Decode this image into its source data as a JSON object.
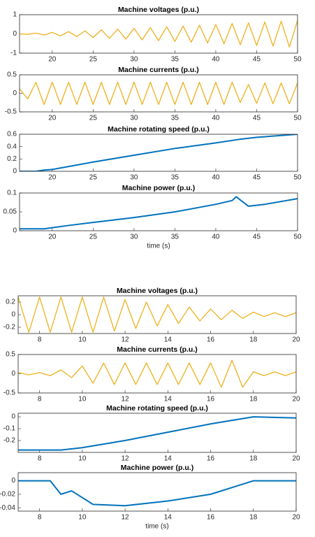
{
  "chart_data": [
    {
      "type": "line",
      "title": "Machine voltages (p.u.)",
      "xlim": [
        16,
        50
      ],
      "xticks": [
        20,
        25,
        30,
        35,
        40,
        45,
        50
      ],
      "ylim": [
        -1,
        1
      ],
      "yticks": [
        -1,
        0,
        1
      ],
      "x": [
        16,
        17,
        18,
        19,
        20,
        21,
        22,
        23,
        24,
        25,
        26,
        27,
        28,
        29,
        30,
        31,
        32,
        33,
        34,
        35,
        36,
        37,
        38,
        39,
        40,
        41,
        42,
        43,
        44,
        45,
        46,
        47,
        48,
        49,
        50
      ],
      "series": [
        {
          "color": "#EDB120",
          "values": [
            0,
            -0.02,
            0.04,
            -0.06,
            0.08,
            -0.1,
            0.12,
            -0.14,
            0.16,
            -0.19,
            0.21,
            -0.23,
            0.25,
            -0.27,
            0.29,
            -0.31,
            0.33,
            -0.35,
            0.37,
            -0.39,
            0.41,
            -0.43,
            0.45,
            -0.47,
            0.49,
            -0.51,
            0.54,
            -0.56,
            0.58,
            -0.6,
            0.62,
            -0.64,
            0.66,
            -0.68,
            0.7
          ]
        }
      ]
    },
    {
      "type": "line",
      "title": "Machine currents (p.u.)",
      "xlim": [
        16,
        50
      ],
      "xticks": [
        20,
        25,
        30,
        35,
        40,
        45,
        50
      ],
      "ylim": [
        -0.5,
        0.5
      ],
      "yticks": [
        -0.5,
        0,
        0.5
      ],
      "x": [
        16,
        17,
        18,
        19,
        20,
        21,
        22,
        23,
        24,
        25,
        26,
        27,
        28,
        29,
        30,
        31,
        32,
        33,
        34,
        35,
        36,
        37,
        38,
        39,
        40,
        41,
        42,
        43,
        44,
        45,
        46,
        47,
        48,
        49,
        50
      ],
      "series": [
        {
          "color": "#EDB120",
          "values": [
            0.12,
            -0.15,
            0.3,
            -0.3,
            0.3,
            -0.3,
            0.3,
            -0.3,
            0.3,
            -0.3,
            0.3,
            -0.3,
            0.3,
            -0.3,
            0.3,
            -0.3,
            0.3,
            -0.3,
            0.3,
            -0.3,
            0.3,
            -0.3,
            0.3,
            -0.3,
            0.3,
            -0.3,
            0.3,
            -0.25,
            0.24,
            -0.27,
            0.28,
            -0.28,
            0.28,
            -0.28,
            0.28
          ]
        }
      ]
    },
    {
      "type": "line",
      "title": "Machine rotating speed (p.u.)",
      "xlim": [
        16,
        50
      ],
      "xticks": [
        20,
        25,
        30,
        35,
        40,
        45,
        50
      ],
      "ylim": [
        0,
        0.6
      ],
      "yticks": [
        0,
        0.2,
        0.4,
        0.6
      ],
      "x": [
        16,
        18,
        19,
        20,
        25,
        30,
        35,
        40,
        43,
        45,
        50
      ],
      "series": [
        {
          "color": "#0072BD",
          "values": [
            0,
            0,
            0.02,
            0.03,
            0.15,
            0.26,
            0.37,
            0.46,
            0.52,
            0.55,
            0.6
          ]
        }
      ]
    },
    {
      "type": "line",
      "title": "Machine power (p.u.)",
      "xlabel": "time (s)",
      "xlim": [
        16,
        50
      ],
      "xticks": [
        20,
        25,
        30,
        35,
        40,
        45,
        50
      ],
      "ylim": [
        0,
        0.1
      ],
      "yticks": [
        0,
        0.05,
        0.1
      ],
      "x": [
        16,
        19,
        22,
        25,
        30,
        35,
        40,
        42,
        42.5,
        44,
        46,
        50
      ],
      "series": [
        {
          "color": "#0072BD",
          "values": [
            0.005,
            0.005,
            0.014,
            0.022,
            0.035,
            0.05,
            0.07,
            0.08,
            0.09,
            0.065,
            0.07,
            0.085
          ]
        }
      ]
    },
    {
      "type": "line",
      "title": "Machine voltages (p.u.)",
      "xlim": [
        7,
        20
      ],
      "xticks": [
        8,
        10,
        12,
        14,
        16,
        18,
        20
      ],
      "ylim": [
        -0.3,
        0.3
      ],
      "yticks": [
        -0.2,
        0,
        0.2
      ],
      "x": [
        7,
        7.5,
        8,
        8.5,
        9,
        9.5,
        10,
        10.5,
        11,
        11.5,
        12,
        12.5,
        13,
        13.5,
        14,
        14.5,
        15,
        15.5,
        16,
        16.5,
        17,
        17.5,
        18,
        18.5,
        19,
        19.5,
        20
      ],
      "series": [
        {
          "color": "#EDB120",
          "values": [
            0.28,
            -0.28,
            0.28,
            -0.28,
            0.28,
            -0.28,
            0.28,
            -0.28,
            0.28,
            -0.26,
            0.24,
            -0.22,
            0.2,
            -0.18,
            0.16,
            -0.14,
            0.12,
            -0.1,
            0.09,
            -0.08,
            0.07,
            -0.06,
            0.04,
            -0.03,
            0.03,
            -0.03,
            0.03
          ]
        }
      ]
    },
    {
      "type": "line",
      "title": "Machine currents (p.u.)",
      "xlim": [
        7,
        20
      ],
      "xticks": [
        8,
        10,
        12,
        14,
        16,
        18,
        20
      ],
      "ylim": [
        -0.5,
        0.5
      ],
      "yticks": [
        -0.5,
        0,
        0.5
      ],
      "x": [
        7,
        7.5,
        8,
        8.5,
        9,
        9.5,
        10,
        10.5,
        11,
        11.5,
        12,
        12.5,
        13,
        13.5,
        14,
        14.5,
        15,
        15.5,
        16,
        16.5,
        17,
        17.5,
        18,
        18.5,
        19,
        19.5,
        20
      ],
      "series": [
        {
          "color": "#EDB120",
          "values": [
            0.03,
            -0.03,
            0.03,
            -0.05,
            0.1,
            -0.1,
            0.2,
            -0.25,
            0.28,
            -0.28,
            0.28,
            -0.28,
            0.28,
            -0.28,
            0.28,
            -0.28,
            0.28,
            -0.28,
            0.28,
            -0.35,
            0.35,
            -0.35,
            0.05,
            -0.05,
            0.05,
            -0.05,
            0.05
          ]
        }
      ]
    },
    {
      "type": "line",
      "title": "Machine rotating speed (p.u.)",
      "xlim": [
        7,
        20
      ],
      "xticks": [
        8,
        10,
        12,
        14,
        16,
        18,
        20
      ],
      "ylim": [
        -0.3,
        0.03
      ],
      "yticks": [
        -0.2,
        -0.1,
        0
      ],
      "x": [
        7,
        9,
        10,
        12,
        14,
        16,
        18,
        20
      ],
      "series": [
        {
          "color": "#0072BD",
          "values": [
            -0.28,
            -0.28,
            -0.26,
            -0.2,
            -0.13,
            -0.06,
            0,
            -0.01
          ]
        }
      ]
    },
    {
      "type": "line",
      "title": "Machine power (p.u.)",
      "xlabel": "time (s)",
      "xlim": [
        7,
        20
      ],
      "xticks": [
        8,
        10,
        12,
        14,
        16,
        18,
        20
      ],
      "ylim": [
        -0.045,
        0.012
      ],
      "yticks": [
        -0.04,
        -0.02,
        0
      ],
      "x": [
        7,
        8.5,
        9,
        9.5,
        10.5,
        12,
        14,
        16,
        17.5,
        18,
        20
      ],
      "series": [
        {
          "color": "#0072BD",
          "values": [
            0,
            0,
            -0.02,
            -0.015,
            -0.035,
            -0.037,
            -0.03,
            -0.02,
            -0.005,
            0,
            0
          ]
        }
      ]
    }
  ]
}
